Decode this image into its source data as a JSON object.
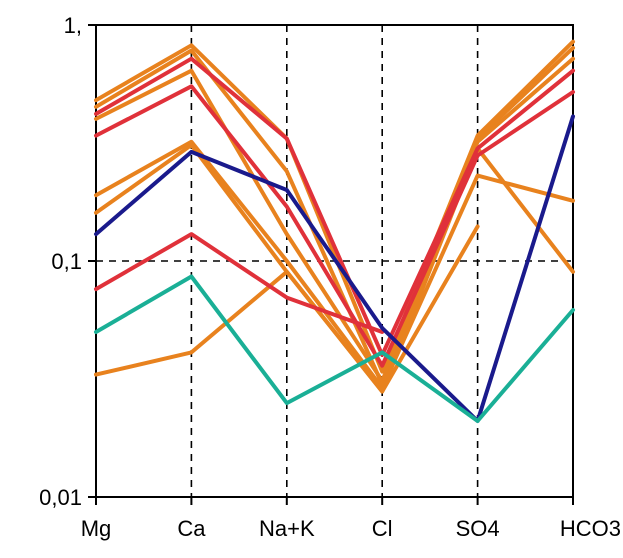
{
  "chart_data": {
    "type": "line",
    "title": "",
    "xlabel": "",
    "ylabel": "",
    "y_scale": "log",
    "ylim": [
      0.01,
      1
    ],
    "yticks": [
      {
        "value": 0.01,
        "label": "0,01"
      },
      {
        "value": 0.1,
        "label": "0,1"
      },
      {
        "value": 1,
        "label": "1,"
      }
    ],
    "categories": [
      "Mg",
      "Ca",
      "Na+K",
      "Cl",
      "SO4",
      "HCO3"
    ],
    "grid": "dashed at each category and at 0.1",
    "legend": "none",
    "colors": {
      "orange": "#e8821e",
      "red": "#e0313a",
      "navy": "#1a1a8c",
      "teal": "#1aaf96"
    },
    "series": [
      {
        "color": "#e8821e",
        "values": [
          0.48,
          0.82,
          0.33,
          0.034,
          0.34,
          0.85
        ]
      },
      {
        "color": "#e8821e",
        "values": [
          0.45,
          0.78,
          0.24,
          0.03,
          0.33,
          0.8
        ]
      },
      {
        "color": "#e8821e",
        "values": [
          0.4,
          0.64,
          0.13,
          0.031,
          0.32,
          0.72
        ]
      },
      {
        "color": "#e8821e",
        "values": [
          0.19,
          0.32,
          0.1,
          0.029,
          0.23,
          0.18
        ]
      },
      {
        "color": "#e8821e",
        "values": [
          0.16,
          0.31,
          0.09,
          0.028,
          0.3,
          0.09
        ]
      },
      {
        "color": "#e8821e",
        "values": [
          0.033,
          0.041,
          0.09,
          0.028,
          0.14,
          null
        ]
      },
      {
        "color": "#e0313a",
        "values": [
          0.42,
          0.72,
          0.33,
          0.04,
          0.3,
          0.64
        ]
      },
      {
        "color": "#e0313a",
        "values": [
          0.34,
          0.55,
          0.17,
          0.036,
          0.28,
          0.52
        ]
      },
      {
        "color": "#e0313a",
        "values": [
          0.076,
          0.13,
          0.07,
          0.05,
          null,
          null
        ]
      },
      {
        "color": "#1a1a8c",
        "values": [
          0.13,
          0.29,
          0.2,
          0.052,
          0.021,
          0.41
        ]
      },
      {
        "color": "#1aaf96",
        "values": [
          0.05,
          0.086,
          0.025,
          0.041,
          0.021,
          0.062
        ]
      }
    ]
  }
}
